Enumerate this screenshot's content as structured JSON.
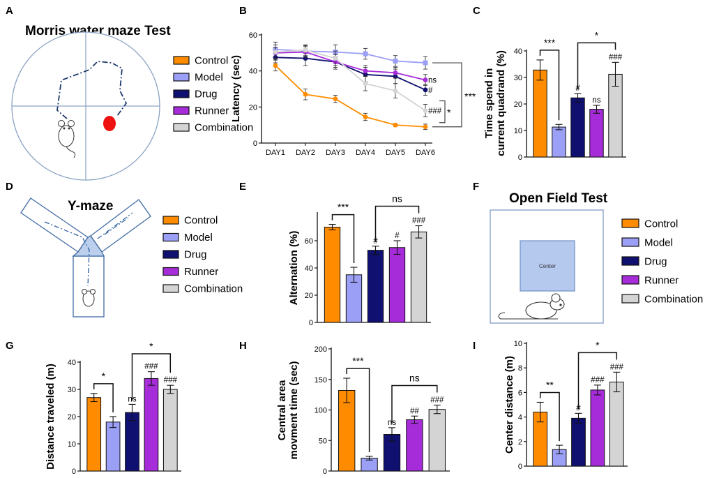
{
  "colors": {
    "Control": "#FF8C00",
    "Model": "#9B9FF5",
    "Drug": "#0F1070",
    "Runner": "#A62BD9",
    "Combination": "#D4D4D4",
    "outline": "#4A6FA1",
    "center_fill": "#B5C8EE"
  },
  "panels": {
    "A": {
      "letter": "A",
      "title": "Morris water maze Test",
      "legend": [
        "Control",
        "Model",
        "Drug",
        "Runner",
        "Combination"
      ]
    },
    "D": {
      "letter": "D",
      "title": "Y-maze",
      "legend": [
        "Control",
        "Model",
        "Drug",
        "Runner",
        "Combination"
      ]
    },
    "F": {
      "letter": "F",
      "title": "Open Field Test",
      "center_label": "Center",
      "legend": [
        "Control",
        "Model",
        "Drug",
        "Runner",
        "Combination"
      ]
    }
  },
  "chart_data": [
    {
      "panel": "B",
      "letter": "B",
      "type": "line",
      "ylabel": "Latency (sec)",
      "ylim": [
        0,
        60
      ],
      "yticks": [
        0,
        20,
        40,
        60
      ],
      "categories": [
        "DAY1",
        "DAY2",
        "DAY3",
        "DAY4",
        "DAY5",
        "DAY6"
      ],
      "series": [
        {
          "name": "Control",
          "values": [
            43,
            27,
            24.5,
            14.5,
            10,
            9
          ],
          "errors": [
            3,
            3,
            2,
            2,
            0.8,
            1.5
          ],
          "end_label": ""
        },
        {
          "name": "Model",
          "values": [
            52,
            51,
            50.5,
            49.5,
            45.5,
            44.5
          ],
          "errors": [
            4,
            3,
            4,
            3,
            3,
            3.5
          ],
          "end_label": ""
        },
        {
          "name": "Drug",
          "values": [
            47.5,
            47,
            45,
            38,
            37,
            29.5
          ],
          "errors": [
            3,
            4,
            4,
            4,
            4,
            3
          ],
          "end_label": "#"
        },
        {
          "name": "Runner",
          "values": [
            50,
            50.5,
            45,
            40,
            39,
            35
          ],
          "errors": [
            3,
            3,
            3,
            3,
            3,
            3
          ],
          "end_label": "ns"
        },
        {
          "name": "Combination",
          "values": [
            50.5,
            51.5,
            47,
            33,
            29,
            18
          ],
          "errors": [
            4,
            3,
            4,
            4,
            4,
            3.5
          ],
          "end_label": "###"
        }
      ],
      "brackets": [
        {
          "label": "***"
        },
        {
          "label": "*"
        }
      ]
    },
    {
      "panel": "C",
      "letter": "C",
      "type": "bar",
      "ylabel": "Time spend in current quadrand (%)",
      "ylabel_lines": [
        "Time spend in",
        "current quadrand (%)"
      ],
      "ylim": [
        0,
        40
      ],
      "yticks": [
        0,
        10,
        20,
        30,
        40
      ],
      "categories": [
        "Control",
        "Model",
        "Drug",
        "Runner",
        "Combination"
      ],
      "values": [
        32.8,
        11.3,
        22.3,
        18,
        31.2
      ],
      "errors": [
        3.8,
        1,
        1.6,
        1.5,
        4.5
      ],
      "bar_labels": [
        "",
        "",
        "#",
        "ns",
        "###"
      ],
      "brackets": [
        {
          "from": 0,
          "to": 1,
          "label": "***"
        },
        {
          "from": 2,
          "to": 4,
          "label": "*"
        }
      ]
    },
    {
      "panel": "E",
      "letter": "E",
      "type": "bar",
      "ylabel": "Alternation (%)",
      "ylim": [
        0,
        80
      ],
      "yticks": [
        0,
        20,
        40,
        60
      ],
      "categories": [
        "Control",
        "Model",
        "Drug",
        "Runner",
        "Combination"
      ],
      "values": [
        70,
        35,
        53,
        55,
        66.5
      ],
      "errors": [
        2,
        5.5,
        3,
        5,
        4.5
      ],
      "bar_labels": [
        "",
        "",
        "#",
        "#",
        "###"
      ],
      "brackets": [
        {
          "from": 0,
          "to": 1,
          "label": "***"
        },
        {
          "from": 2,
          "to": 4,
          "label": "ns"
        }
      ]
    },
    {
      "panel": "G",
      "letter": "G",
      "type": "bar",
      "ylabel": "Distance traveled (m)",
      "ylim": [
        0,
        40
      ],
      "yticks": [
        0,
        10,
        20,
        30,
        40
      ],
      "categories": [
        "Control",
        "Model",
        "Drug",
        "Runner",
        "Combination"
      ],
      "values": [
        27,
        18,
        21.5,
        34,
        30
      ],
      "errors": [
        1.5,
        2,
        3,
        2.5,
        1.5
      ],
      "bar_labels": [
        "",
        "",
        "ns",
        "###",
        "###"
      ],
      "brackets": [
        {
          "from": 0,
          "to": 1,
          "label": "*"
        },
        {
          "from": 2,
          "to": 4,
          "label": "*"
        }
      ]
    },
    {
      "panel": "H",
      "letter": "H",
      "type": "bar",
      "ylabel": "Central area movment time (sec)",
      "ylabel_lines": [
        "Central area",
        "movment time (sec)"
      ],
      "ylim": [
        0,
        200
      ],
      "yticks": [
        0,
        50,
        100,
        150,
        200
      ],
      "categories": [
        "Control",
        "Model",
        "Drug",
        "Runner",
        "Combination"
      ],
      "values": [
        132,
        21,
        60,
        84,
        101
      ],
      "errors": [
        20,
        3,
        11,
        6,
        7
      ],
      "bar_labels": [
        "",
        "",
        "ns",
        "##",
        "###"
      ],
      "brackets": [
        {
          "from": 0,
          "to": 1,
          "label": "***"
        },
        {
          "from": 2,
          "to": 4,
          "label": "ns"
        }
      ]
    },
    {
      "panel": "I",
      "letter": "I",
      "type": "bar",
      "ylabel": "Center distance (m)",
      "ylim": [
        0,
        10
      ],
      "yticks": [
        0,
        2,
        4,
        6,
        8,
        10
      ],
      "categories": [
        "Control",
        "Model",
        "Drug",
        "Runner",
        "Combination"
      ],
      "values": [
        4.4,
        1.35,
        3.9,
        6.2,
        6.85
      ],
      "errors": [
        0.8,
        0.35,
        0.4,
        0.4,
        0.8
      ],
      "bar_labels": [
        "",
        "",
        "#",
        "###",
        "###"
      ],
      "brackets": [
        {
          "from": 0,
          "to": 1,
          "label": "**"
        },
        {
          "from": 2,
          "to": 4,
          "label": "*"
        }
      ]
    }
  ]
}
